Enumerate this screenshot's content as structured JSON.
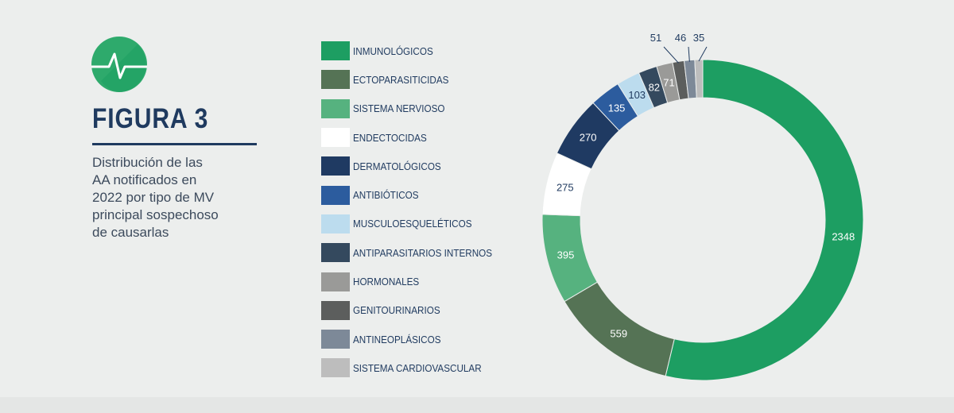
{
  "header": {
    "title": "FIGURA 3",
    "caption": "Distribución de las\nAA notificados en\n2022 por tipo de MV\nprincipal sospechoso\nde causarlas",
    "icon": "heartbeat-pulse-icon"
  },
  "chart_data": {
    "type": "pie",
    "donut": true,
    "series": [
      {
        "name": "INMUNOLÓGICOS",
        "value": 2348,
        "color": "#1d9e62"
      },
      {
        "name": "ECTOPARASITICIDAS",
        "value": 559,
        "color": "#557355"
      },
      {
        "name": "SISTEMA NERVIOSO",
        "value": 395,
        "color": "#56b27f"
      },
      {
        "name": "ENDECTOCIDAS",
        "value": 275,
        "color": "#ffffff"
      },
      {
        "name": "DERMATOLÓGICOS",
        "value": 270,
        "color": "#1f3a62"
      },
      {
        "name": "ANTIBIÓTICOS",
        "value": 135,
        "color": "#2c5c9e"
      },
      {
        "name": "MUSCULOESQUELÉTICOS",
        "value": 103,
        "color": "#bcdcee"
      },
      {
        "name": "ANTIPARASITARIOS INTERNOS",
        "value": 82,
        "color": "#34495e"
      },
      {
        "name": "HORMONALES",
        "value": 71,
        "color": "#9a9a98"
      },
      {
        "name": "GENITOURINARIOS",
        "value": 51,
        "color": "#5c5e5d"
      },
      {
        "name": "ANTINEOPLÁSICOS",
        "value": 46,
        "color": "#7d8998"
      },
      {
        "name": "SISTEMA CARDIOVASCULAR",
        "value": 35,
        "color": "#bdbdbd"
      }
    ],
    "legend_position": "left"
  },
  "colors": {
    "background": "#eceeed",
    "title": "#1f3a5f",
    "accent": "#1d9e62"
  }
}
